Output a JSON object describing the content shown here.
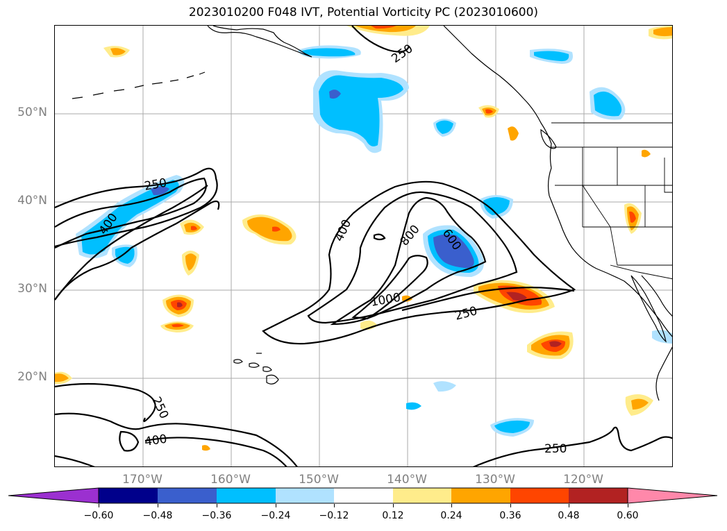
{
  "title": "2023010200 F048 IVT, Potential Vorticity PC (2023010600)",
  "lat_labels": [
    "50°N",
    "40°N",
    "30°N",
    "20°N"
  ],
  "lon_labels": [
    "170°W",
    "160°W",
    "150°W",
    "140°W",
    "130°W",
    "120°W"
  ],
  "contour_labels": [
    "250",
    "400",
    "250",
    "400",
    "800",
    "600",
    "1000",
    "250",
    "250",
    "400",
    "250"
  ],
  "colorbar": {
    "ticks": [
      "−0.60",
      "−0.48",
      "−0.36",
      "−0.24",
      "−0.12",
      "0.12",
      "0.24",
      "0.36",
      "0.48",
      "0.60"
    ],
    "colors": [
      "#9b30d0",
      "#00008b",
      "#3a5fcd",
      "#00bfff",
      "#b0e2ff",
      "#ffffff",
      "#ffec8b",
      "#ffa500",
      "#ff4500",
      "#b22222",
      "#ff88aa"
    ]
  },
  "fill_colors": {
    "neg_strong": "#3a5fcd",
    "neg_mid": "#00bfff",
    "neg_light": "#b0e2ff",
    "pos_light": "#ffec8b",
    "pos_mid": "#ffa500",
    "pos_strong": "#ff4500",
    "pos_dark": "#b22222"
  }
}
